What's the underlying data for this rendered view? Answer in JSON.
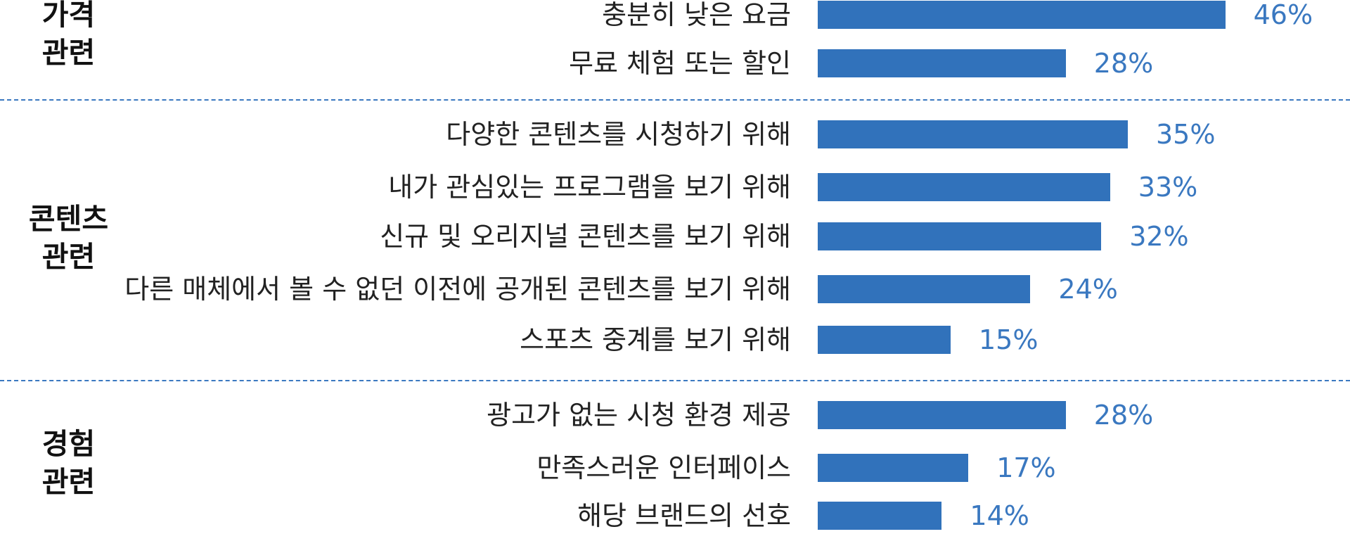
{
  "chart_data": {
    "type": "bar",
    "orientation": "horizontal",
    "groups": [
      {
        "label_lines": [
          "가격",
          "관련"
        ],
        "categories": [
          "충분히 낮은 요금",
          "무료 체험 또는 할인"
        ],
        "values": [
          46,
          28
        ]
      },
      {
        "label_lines": [
          "콘텐츠",
          "관련"
        ],
        "categories": [
          "다양한 콘텐츠를 시청하기 위해",
          "내가 관심있는 프로그램을 보기 위해",
          "신규 및 오리지널 콘텐츠를 보기 위해",
          "다른 매체에서 볼 수 없던 이전에 공개된 콘텐츠를 보기 위해",
          "스포츠 중계를 보기 위해"
        ],
        "values": [
          35,
          33,
          32,
          24,
          15
        ]
      },
      {
        "label_lines": [
          "경험",
          "관련"
        ],
        "categories": [
          "광고가 없는 시청 환경 제공",
          "만족스러운 인터페이스",
          "해당 브랜드의 선호"
        ],
        "values": [
          28,
          17,
          14
        ]
      }
    ],
    "value_suffix": "%",
    "bar_color": "#3172bb",
    "value_label_color": "#3a78c0",
    "divider_color": "#3a78c0",
    "grid": false,
    "legend": "none"
  }
}
